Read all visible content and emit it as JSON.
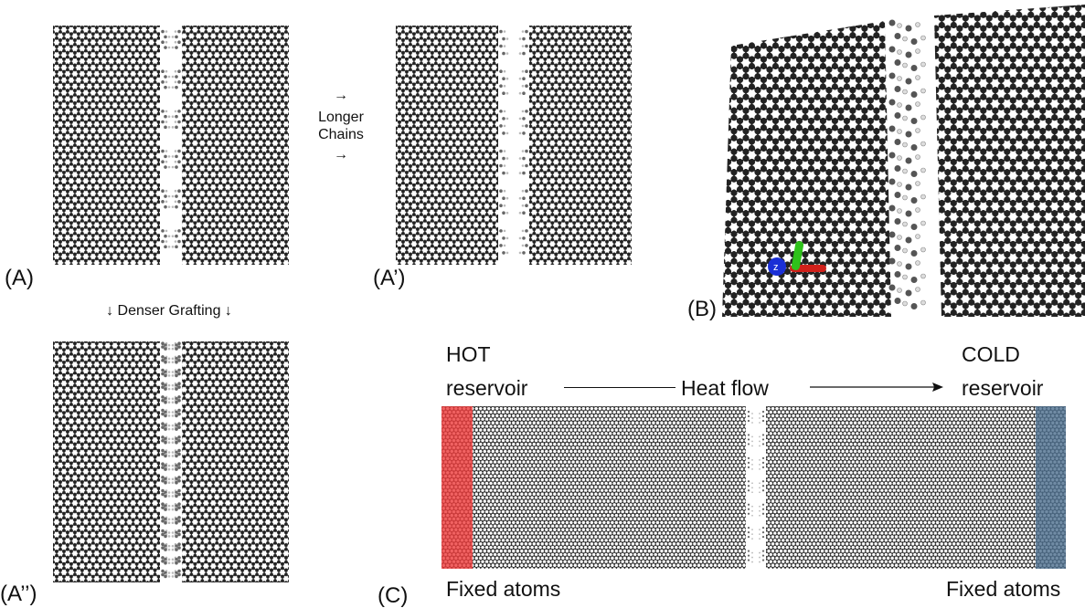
{
  "panels": {
    "a": {
      "label": "(A)"
    },
    "a_prime": {
      "label": "(A’)"
    },
    "a_double_prime": {
      "label": "(A’’)"
    },
    "b": {
      "label": "(B)"
    },
    "c": {
      "label": "(C)"
    }
  },
  "transitions": {
    "longer_arrow_top": "→",
    "longer_text": "Longer\nChains",
    "longer_arrow_bottom": "→",
    "denser_text": "↓ Denser Grafting ↓"
  },
  "panel_b": {
    "axis_label": "z",
    "axis_colors": {
      "x": "#d0201a",
      "y": "#2ec21a",
      "z": "#1a2fd6"
    }
  },
  "panel_c": {
    "hot_label_line1": "HOT",
    "hot_label_line2": "reservoir",
    "heat_flow_label": "Heat flow",
    "cold_label_line1": "COLD",
    "cold_label_line2": "reservoir",
    "fixed_left": "Fixed atoms",
    "fixed_right": "Fixed atoms",
    "hot_color": "#ee3b3b",
    "cold_color": "#4e6f8e"
  }
}
